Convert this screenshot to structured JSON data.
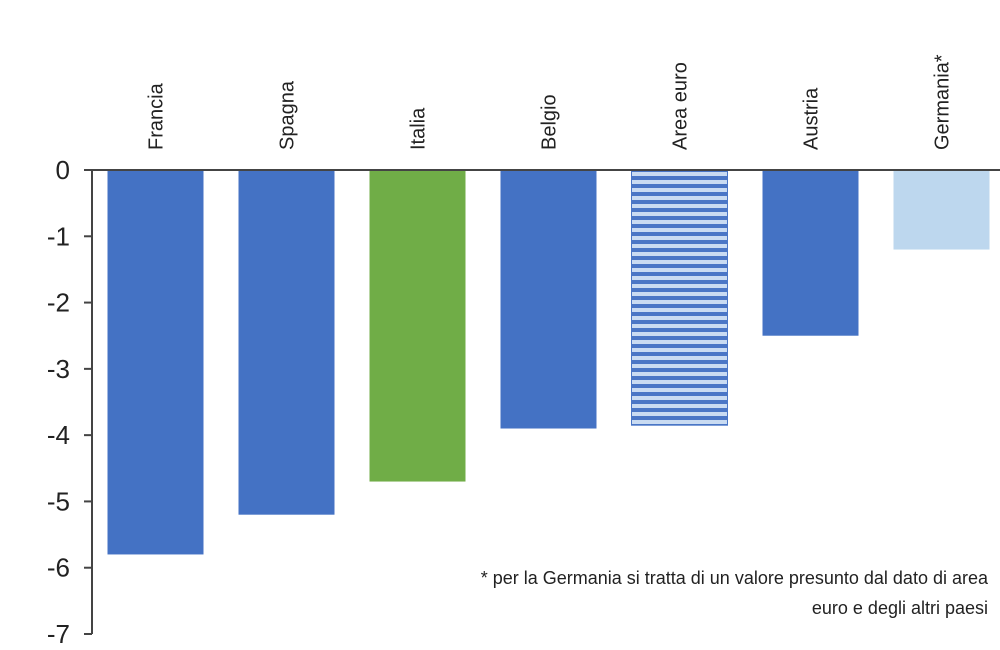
{
  "chart_data": {
    "type": "bar",
    "categories": [
      "Francia",
      "Spagna",
      "Italia",
      "Belgio",
      "Area euro",
      "Austria",
      "Germania*"
    ],
    "values": [
      -5.8,
      -5.2,
      -4.7,
      -3.9,
      -3.85,
      -2.5,
      -1.2
    ],
    "colors": [
      "#4472c4",
      "#4472c4",
      "#70ad47",
      "#4472c4",
      "#a9c4e8",
      "#4472c4",
      "#bdd7ee"
    ],
    "hatched": [
      false,
      false,
      false,
      false,
      true,
      false,
      false
    ],
    "hatch_color": "#4a76c6",
    "ylim": [
      -7,
      0
    ],
    "yticks": [
      0,
      -1,
      -2,
      -3,
      -4,
      -5,
      -6,
      -7
    ],
    "annotations": [
      "* per la Germania si tratta di un valore presunto dal dato di area",
      "euro e  degli altri paesi"
    ]
  }
}
